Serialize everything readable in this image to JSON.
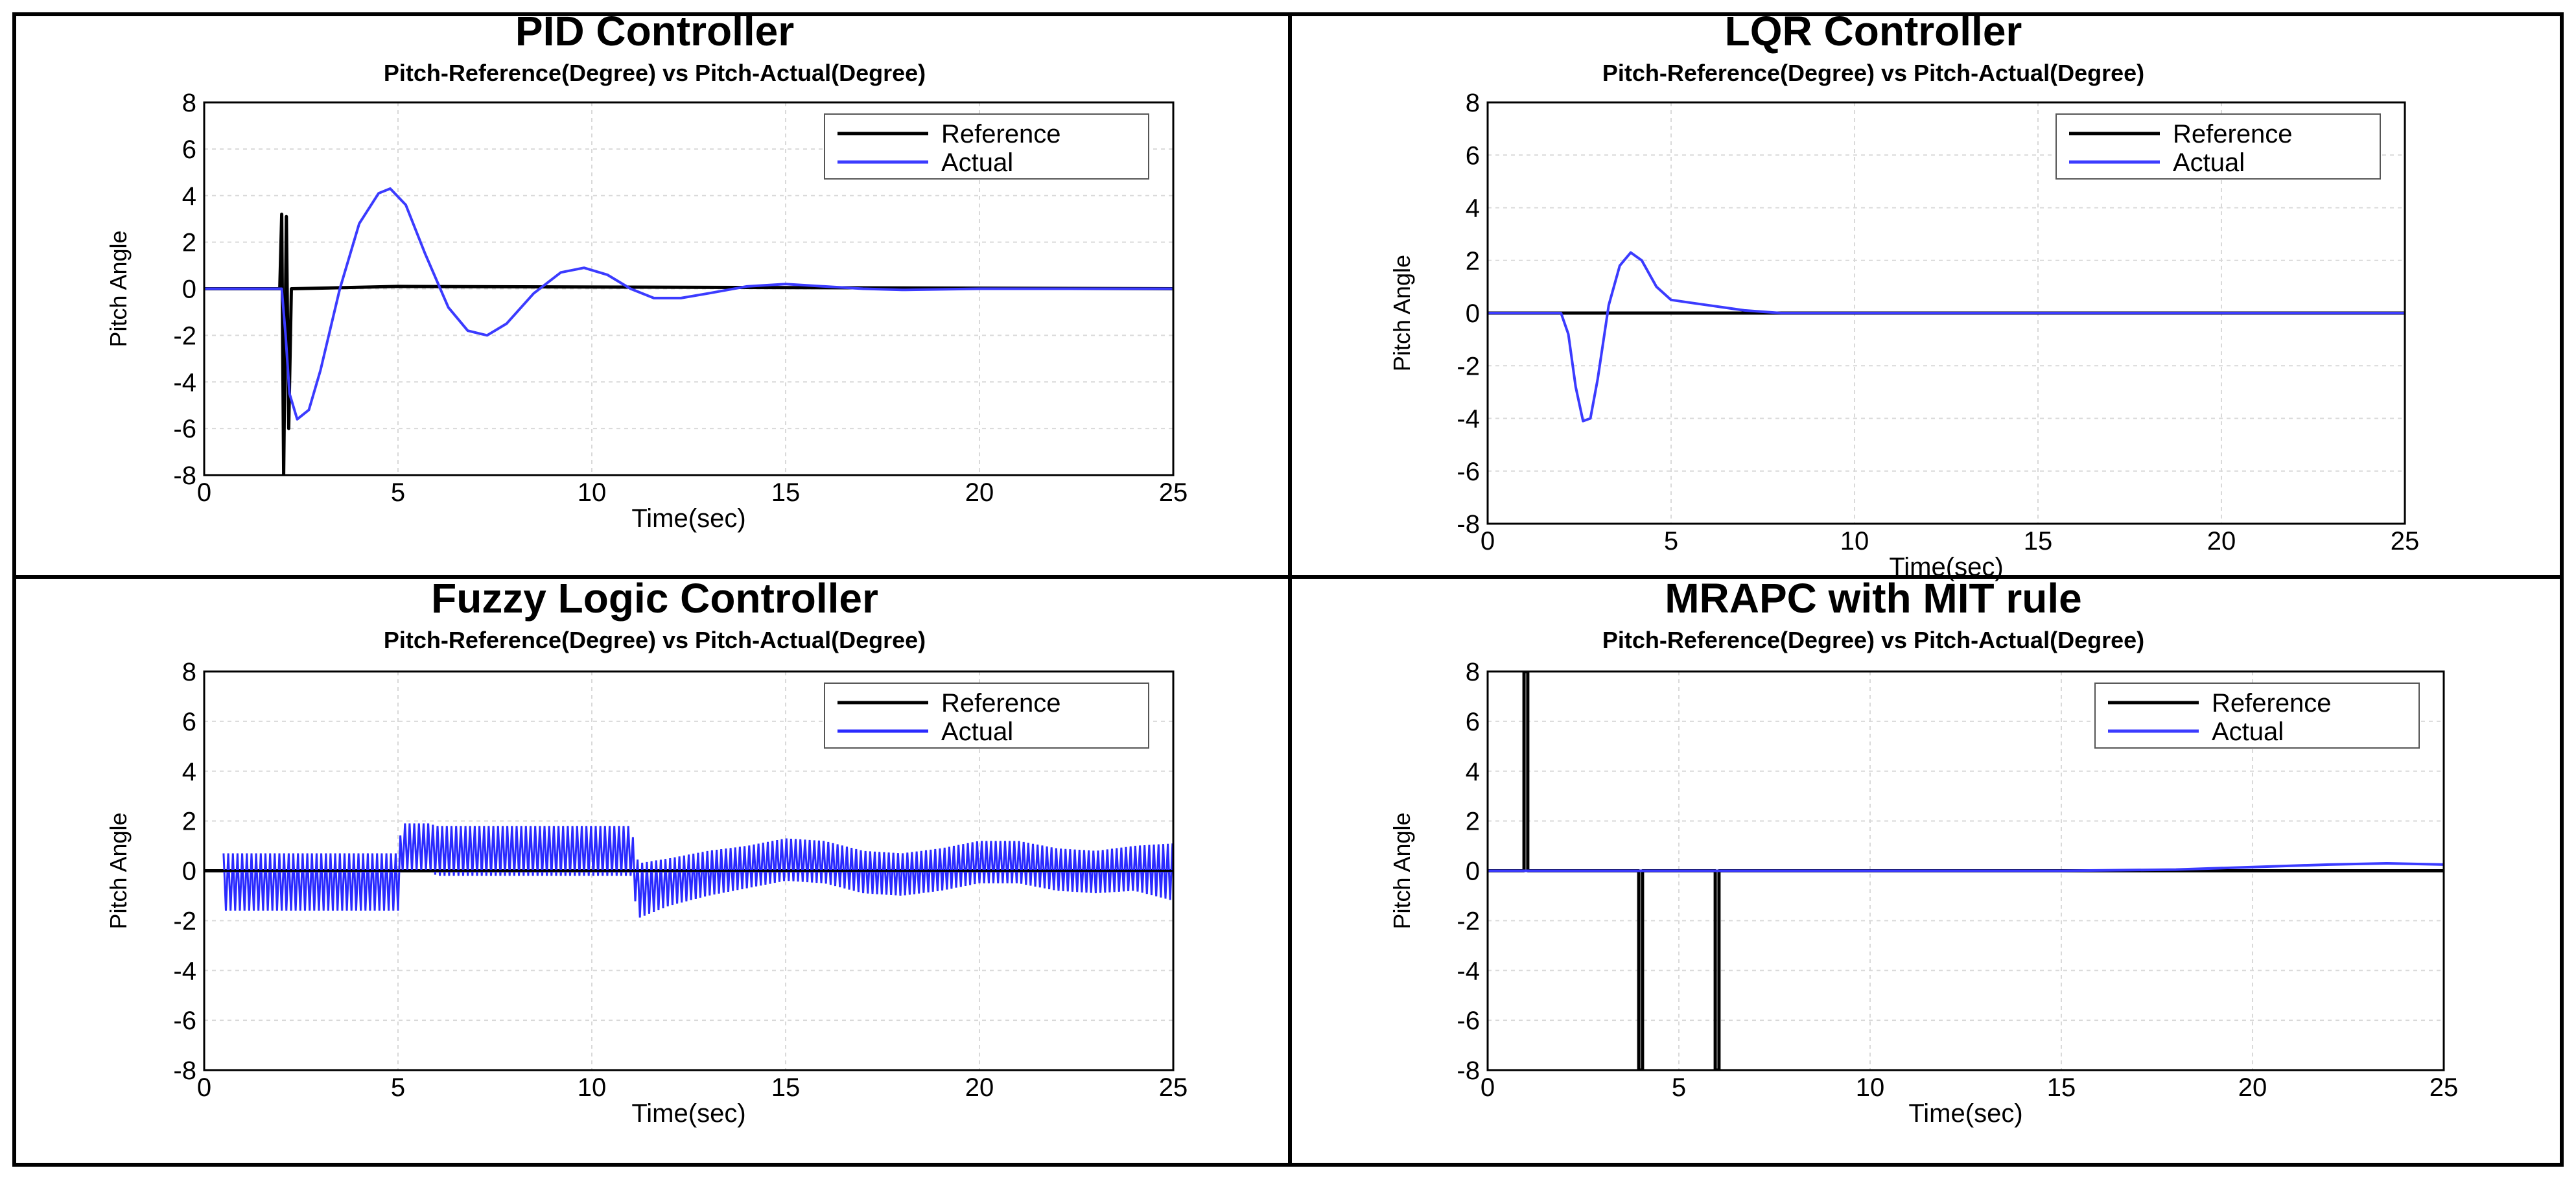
{
  "chart_data": [
    {
      "type": "line",
      "title": "PID Controller",
      "subtitle": "Pitch-Reference(Degree) vs Pitch-Actual(Degree)",
      "xlabel": "Time(sec)",
      "ylabel": "Pitch Angle",
      "xlim": [
        0,
        25
      ],
      "ylim": [
        -8,
        8
      ],
      "xticks": [
        "0",
        "5",
        "10",
        "15",
        "20",
        "25"
      ],
      "yticks": [
        "8",
        "6",
        "4",
        "2",
        "0",
        "-2",
        "-4",
        "-6",
        "-8"
      ],
      "grid": true,
      "legend_position": "top-right",
      "series": [
        {
          "name": "Reference",
          "color": "#000000",
          "x": [
            0,
            1.95,
            2.0,
            2.05,
            2.12,
            2.18,
            2.25,
            5,
            25
          ],
          "y": [
            0,
            0,
            3.2,
            -8,
            3.1,
            -6,
            0,
            0.1,
            0
          ]
        },
        {
          "name": "Actual",
          "color": "#3b3bff",
          "x": [
            0,
            2.0,
            2.1,
            2.2,
            2.4,
            2.7,
            3.0,
            3.5,
            4.0,
            4.5,
            4.8,
            5.2,
            5.7,
            6.3,
            6.8,
            7.3,
            7.8,
            8.5,
            9.2,
            9.8,
            10.4,
            11.0,
            11.6,
            12.3,
            13.0,
            14.0,
            15.0,
            16.0,
            17.0,
            18.0,
            20.0,
            22.0,
            25.0
          ],
          "y": [
            0,
            0,
            -2,
            -4.5,
            -5.6,
            -5.2,
            -3.5,
            0,
            2.8,
            4.1,
            4.3,
            3.6,
            1.5,
            -0.8,
            -1.8,
            -2.0,
            -1.5,
            -0.2,
            0.7,
            0.9,
            0.6,
            0,
            -0.4,
            -0.4,
            -0.2,
            0.1,
            0.2,
            0.1,
            0,
            -0.05,
            0,
            0,
            0
          ]
        }
      ]
    },
    {
      "type": "line",
      "title": "LQR Controller",
      "subtitle": "Pitch-Reference(Degree) vs Pitch-Actual(Degree)",
      "xlabel": "Time(sec)",
      "ylabel": "Pitch Angle",
      "xlim": [
        0,
        25
      ],
      "ylim": [
        -8,
        8
      ],
      "xticks": [
        "0",
        "5",
        "10",
        "15",
        "20",
        "25"
      ],
      "yticks": [
        "8",
        "6",
        "4",
        "2",
        "0",
        "-2",
        "-4",
        "-6",
        "-8"
      ],
      "grid": true,
      "legend_position": "top-right",
      "series": [
        {
          "name": "Reference",
          "color": "#000000",
          "x": [
            0,
            25
          ],
          "y": [
            0,
            0
          ]
        },
        {
          "name": "Actual",
          "color": "#3b3bff",
          "x": [
            0,
            2.0,
            2.2,
            2.4,
            2.6,
            2.8,
            3.0,
            3.3,
            3.6,
            3.9,
            4.2,
            4.6,
            5.0,
            5.5,
            6.0,
            7.0,
            8.0,
            10.0,
            25.0
          ],
          "y": [
            0,
            0,
            -0.8,
            -2.8,
            -4.1,
            -4.0,
            -2.5,
            0.3,
            1.8,
            2.3,
            2.0,
            1.0,
            0.5,
            0.4,
            0.3,
            0.1,
            0,
            0,
            0
          ]
        }
      ]
    },
    {
      "type": "line",
      "title": "Fuzzy Logic Controller",
      "subtitle": "Pitch-Reference(Degree) vs Pitch-Actual(Degree)",
      "xlabel": "Time(sec)",
      "ylabel": "Pitch Angle",
      "xlim": [
        0,
        25
      ],
      "ylim": [
        -8,
        8
      ],
      "xticks": [
        "0",
        "5",
        "10",
        "15",
        "20",
        "25"
      ],
      "yticks": [
        "8",
        "6",
        "4",
        "2",
        "0",
        "-2",
        "-4",
        "-6",
        "-8"
      ],
      "grid": true,
      "legend_position": "top-right",
      "series": [
        {
          "name": "Reference",
          "color": "#000000",
          "x": [
            0,
            25
          ],
          "y": [
            0,
            0
          ]
        },
        {
          "name": "Actual",
          "color": "#2a2aff",
          "style": "oscillating band",
          "x": [
            0.5,
            5.0,
            5.1,
            5.8,
            6.0,
            11.0,
            11.2,
            12.0,
            13.0,
            14.0,
            15.0,
            16.0,
            17.0,
            18.0,
            19.0,
            20.0,
            21.0,
            22.0,
            23.0,
            24.0,
            25.0
          ],
          "y_upper": [
            0.7,
            0.7,
            1.9,
            1.9,
            1.8,
            1.8,
            0.3,
            0.5,
            0.8,
            1.0,
            1.3,
            1.2,
            0.8,
            0.7,
            0.9,
            1.2,
            1.2,
            0.9,
            0.8,
            1.0,
            1.1
          ],
          "y_lower": [
            -1.6,
            -1.6,
            0.0,
            0.0,
            -0.2,
            -0.2,
            -1.9,
            -1.4,
            -1.0,
            -0.7,
            -0.4,
            -0.5,
            -0.9,
            -1.0,
            -0.8,
            -0.5,
            -0.5,
            -0.8,
            -0.9,
            -0.8,
            -1.2
          ]
        }
      ]
    },
    {
      "type": "line",
      "title": "MRAPC with MIT rule",
      "subtitle": "Pitch-Reference(Degree) vs Pitch-Actual(Degree)",
      "xlabel": "Time(sec)",
      "ylabel": "Pitch Angle",
      "xlim": [
        0,
        25
      ],
      "ylim": [
        -8,
        8
      ],
      "xticks": [
        "0",
        "5",
        "10",
        "15",
        "20",
        "25"
      ],
      "yticks": [
        "8",
        "6",
        "4",
        "2",
        "0",
        "-2",
        "-4",
        "-6",
        "-8"
      ],
      "grid": true,
      "legend_position": "top-right",
      "series": [
        {
          "name": "Reference",
          "color": "#000000",
          "x": [
            0,
            0.95,
            0.95,
            1.05,
            1.05,
            3.95,
            3.95,
            4.05,
            4.05,
            5.95,
            5.95,
            6.05,
            6.05,
            25
          ],
          "y": [
            0,
            0,
            8,
            8,
            0,
            0,
            -8,
            -8,
            0,
            0,
            -8,
            -8,
            0,
            0
          ]
        },
        {
          "name": "Actual",
          "color": "#3b3bff",
          "x": [
            0,
            10,
            15,
            18,
            20,
            22,
            23.5,
            25
          ],
          "y": [
            0,
            0,
            0,
            0.05,
            0.15,
            0.25,
            0.3,
            0.25
          ]
        }
      ]
    }
  ],
  "colors": {
    "border": "#000000",
    "grid": "#d9d9d9",
    "actual": "#3b3bff",
    "reference": "#000000"
  }
}
